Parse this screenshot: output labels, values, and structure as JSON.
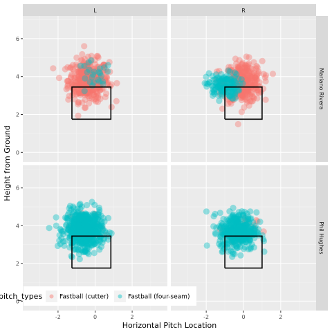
{
  "chart_data": {
    "type": "scatter",
    "facet_columns": [
      "L",
      "R"
    ],
    "facet_rows": [
      "Mariano Rivera",
      "Phil Hughes"
    ],
    "xlabel": "Horizontal Pitch Location",
    "ylabel": "Height from Ground",
    "xlim": [
      -3.9,
      3.9
    ],
    "ylim": [
      -0.5,
      7.2
    ],
    "x_ticks": [
      -2,
      0,
      2
    ],
    "y_ticks": [
      0,
      2,
      4,
      6
    ],
    "grid": true,
    "legend": {
      "title": "pitch_types",
      "placement": "bottom-left",
      "entries": [
        {
          "label": "Fastball (cutter)",
          "color": "#F8766D"
        },
        {
          "label": "Fastball (four-seam)",
          "color": "#00BFC4"
        }
      ]
    },
    "strike_zone": {
      "x": [
        -1.25,
        0.85,
        0.85,
        -1.25,
        -1.25
      ],
      "y": [
        1.75,
        1.75,
        3.45,
        3.45,
        1.75
      ]
    },
    "strike_zone_R": {
      "x": [
        -1.0,
        1.0,
        1.0,
        -1.0,
        -1.0
      ],
      "y": [
        1.75,
        1.75,
        3.45,
        3.45,
        1.75
      ]
    },
    "series": [
      {
        "name": "Fastball (cutter)",
        "color": "#F8766D",
        "panels": [
          {
            "row": "Mariano Rivera",
            "col": "L",
            "cx": -0.35,
            "cy": 3.8,
            "sx": 0.55,
            "sy": 0.55,
            "n": 380
          },
          {
            "row": "Mariano Rivera",
            "col": "R",
            "cx": 0.0,
            "cy": 3.7,
            "sx": 0.5,
            "sy": 0.55,
            "n": 320
          },
          {
            "row": "Phil Hughes",
            "col": "L",
            "cx": -0.4,
            "cy": 3.9,
            "sx": 0.45,
            "sy": 0.4,
            "n": 25
          },
          {
            "row": "Phil Hughes",
            "col": "R",
            "cx": -0.2,
            "cy": 3.8,
            "sx": 0.45,
            "sy": 0.4,
            "n": 20
          }
        ]
      },
      {
        "name": "Fastball (four-seam)",
        "color": "#00BFC4",
        "panels": [
          {
            "row": "Mariano Rivera",
            "col": "L",
            "cx": -0.1,
            "cy": 3.9,
            "sx": 0.5,
            "sy": 0.45,
            "n": 25
          },
          {
            "row": "Mariano Rivera",
            "col": "R",
            "cx": -1.1,
            "cy": 3.5,
            "sx": 0.45,
            "sy": 0.35,
            "n": 140
          },
          {
            "row": "Phil Hughes",
            "col": "L",
            "cx": -0.6,
            "cy": 3.8,
            "sx": 0.5,
            "sy": 0.5,
            "n": 600
          },
          {
            "row": "Phil Hughes",
            "col": "R",
            "cx": -0.3,
            "cy": 3.7,
            "sx": 0.5,
            "sy": 0.5,
            "n": 380
          }
        ]
      }
    ]
  }
}
